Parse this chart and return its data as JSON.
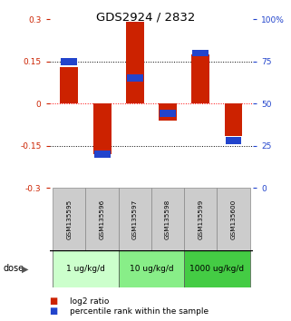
{
  "title": "GDS2924 / 2832",
  "samples": [
    "GSM135595",
    "GSM135596",
    "GSM135597",
    "GSM135598",
    "GSM135599",
    "GSM135600"
  ],
  "log2_ratio": [
    0.13,
    -0.18,
    0.29,
    -0.06,
    0.175,
    -0.115
  ],
  "percentile_rank": [
    75,
    20,
    65,
    44,
    80,
    28
  ],
  "groups": [
    {
      "label": "1 ug/kg/d",
      "samples": [
        0,
        1
      ],
      "color": "#ccffcc"
    },
    {
      "label": "10 ug/kg/d",
      "samples": [
        2,
        3
      ],
      "color": "#88ee88"
    },
    {
      "label": "1000 ug/kg/d",
      "samples": [
        4,
        5
      ],
      "color": "#44cc44"
    }
  ],
  "dose_label": "dose",
  "bar_width": 0.55,
  "red_color": "#cc2200",
  "blue_color": "#2244cc",
  "ylim": [
    -0.3,
    0.3
  ],
  "yticks_left": [
    -0.3,
    -0.15,
    0,
    0.15,
    0.3
  ],
  "ytick_left_labels": [
    "-0.3",
    "-0.15",
    "0",
    "0.15",
    "0.3"
  ],
  "yticks_right": [
    0,
    25,
    50,
    75,
    100
  ],
  "ytick_right_labels": [
    "0",
    "25",
    "50",
    "75",
    "100%"
  ],
  "legend_red": "log2 ratio",
  "legend_blue": "percentile rank within the sample"
}
